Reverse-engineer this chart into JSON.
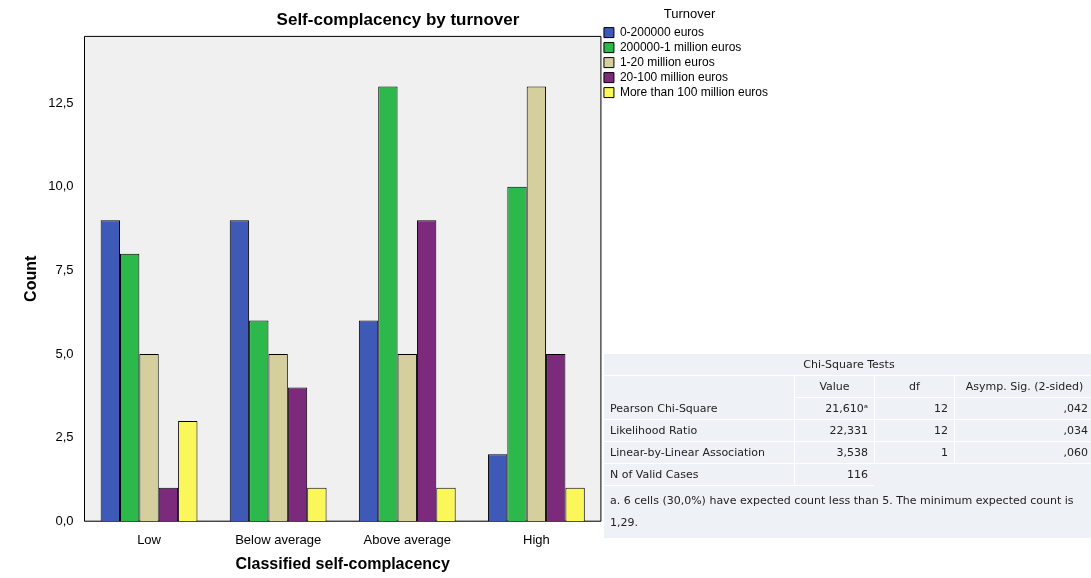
{
  "chart_data": [
    {
      "type": "bar",
      "title": "Self-complacency by turnover",
      "xlabel": "Classified self-complacency",
      "ylabel": "Count",
      "legend_title": "Turnover",
      "legend": "top right",
      "grid": false,
      "categories": [
        "Low",
        "Below average",
        "Above average",
        "High"
      ],
      "ylim": [
        0,
        14.5
      ],
      "yticks": [
        {
          "value": 0,
          "label": "0,0"
        },
        {
          "value": 2.5,
          "label": "2,5"
        },
        {
          "value": 5,
          "label": "5,0"
        },
        {
          "value": 7.5,
          "label": "7,5"
        },
        {
          "value": 10,
          "label": "10,0"
        },
        {
          "value": 12.5,
          "label": "12,5"
        }
      ],
      "series": [
        {
          "name": "0-200000 euros",
          "color": "#3e59b6",
          "values": [
            9,
            9,
            6,
            2
          ]
        },
        {
          "name": "200000-1 million euros",
          "color": "#2cb84a",
          "values": [
            8,
            6,
            13,
            10
          ]
        },
        {
          "name": "1-20 million euros",
          "color": "#d4cf9d",
          "values": [
            5,
            5,
            5,
            13
          ]
        },
        {
          "name": "20-100 million euros",
          "color": "#7b2a7c",
          "values": [
            1,
            4,
            9,
            5
          ]
        },
        {
          "name": "More than 100 million euros",
          "color": "#fbf65a",
          "values": [
            3,
            1,
            1,
            1
          ]
        }
      ]
    },
    {
      "type": "other",
      "title": "Chi-Square Tests",
      "annotations": [
        "Value",
        "df",
        "Asymp. Sig. (2-sided)",
        "Pearson Chi-Square",
        "21,610ᵃ",
        "12",
        ",042",
        "Likelihood Ratio",
        "22,331",
        "12",
        ",034",
        "Linear-by-Linear Association",
        "3,538",
        "1",
        ",060",
        "N of Valid Cases",
        "116",
        "a. 6 cells (30,0%) have expected count less than 5. The minimum expected count is 1,29."
      ]
    }
  ]
}
